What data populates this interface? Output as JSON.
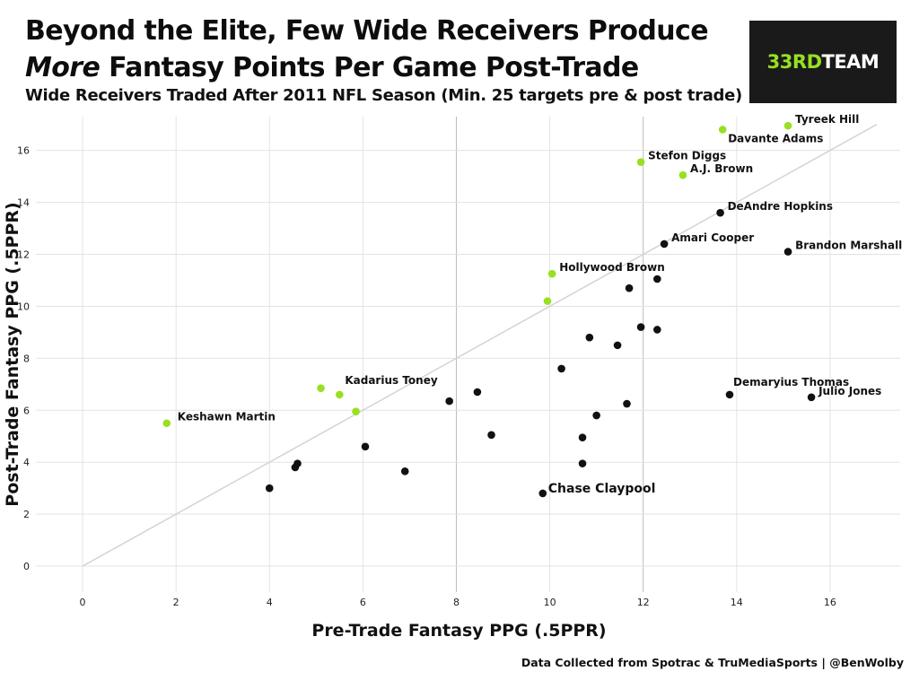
{
  "header": {
    "title_line1": "Beyond the Elite, Few Wide Receivers Produce",
    "title_line2_emph": "More",
    "title_line2_rest": " Fantasy Points Per Game Post-Trade",
    "subtitle": "Wide Receivers Traded After 2011 NFL Season (Min. 25 targets pre & post trade)"
  },
  "logo": {
    "part1": "33RD",
    "part2": "TEAM"
  },
  "footer": {
    "source": "Data Collected from Spotrac & TruMediaSports | @BenWolby"
  },
  "colors": {
    "highlight": "#97e022",
    "default": "#111111",
    "ref_line": "#d4d4d4",
    "grid": "#e3e3e3"
  },
  "chart_data": {
    "type": "scatter",
    "title": "Beyond the Elite, Few Wide Receivers Produce More Fantasy Points Per Game Post-Trade",
    "subtitle": "Wide Receivers Traded After 2011 NFL Season (Min. 25 targets pre & post trade)",
    "xlabel": "Pre-Trade Fantasy PPG (.5PPR)",
    "ylabel": "Post-Trade Fantasy PPG (.5PPR)",
    "xlim": [
      -1,
      17.5
    ],
    "ylim": [
      -1,
      17.3
    ],
    "xticks": [
      0,
      2,
      4,
      6,
      8,
      10,
      12,
      14,
      16
    ],
    "yticks": [
      0,
      2,
      4,
      6,
      8,
      10,
      12,
      14,
      16
    ],
    "grid": true,
    "reference_line": {
      "from": [
        0,
        0
      ],
      "to": [
        17,
        17
      ]
    },
    "points": [
      {
        "x": 15.1,
        "y": 16.95,
        "label": "Tyreek Hill",
        "highlight": true
      },
      {
        "x": 13.7,
        "y": 16.8,
        "label": "Davante Adams",
        "highlight": true
      },
      {
        "x": 11.95,
        "y": 15.55,
        "label": "Stefon Diggs",
        "highlight": true
      },
      {
        "x": 12.85,
        "y": 15.05,
        "label": "A.J. Brown",
        "highlight": true
      },
      {
        "x": 13.65,
        "y": 13.6,
        "label": "DeAndre Hopkins",
        "highlight": false
      },
      {
        "x": 12.45,
        "y": 12.4,
        "label": "Amari Cooper",
        "highlight": false
      },
      {
        "x": 15.1,
        "y": 12.1,
        "label": "Brandon Marshall",
        "highlight": false
      },
      {
        "x": 10.05,
        "y": 11.25,
        "label": "Hollywood Brown",
        "highlight": true
      },
      {
        "x": 9.95,
        "y": 10.2,
        "label": "",
        "highlight": true
      },
      {
        "x": 11.7,
        "y": 10.7,
        "label": "",
        "highlight": false
      },
      {
        "x": 12.3,
        "y": 11.05,
        "label": "",
        "highlight": false
      },
      {
        "x": 11.95,
        "y": 9.2,
        "label": "",
        "highlight": false
      },
      {
        "x": 12.3,
        "y": 9.1,
        "label": "",
        "highlight": false
      },
      {
        "x": 10.85,
        "y": 8.8,
        "label": "",
        "highlight": false
      },
      {
        "x": 11.45,
        "y": 8.5,
        "label": "",
        "highlight": false
      },
      {
        "x": 10.25,
        "y": 7.6,
        "label": "",
        "highlight": false
      },
      {
        "x": 13.85,
        "y": 6.6,
        "label": "Demaryius Thomas",
        "highlight": false
      },
      {
        "x": 15.6,
        "y": 6.5,
        "label": "Julio Jones",
        "highlight": false
      },
      {
        "x": 11.65,
        "y": 6.25,
        "label": "",
        "highlight": false
      },
      {
        "x": 11.0,
        "y": 5.8,
        "label": "",
        "highlight": false
      },
      {
        "x": 10.7,
        "y": 4.95,
        "label": "",
        "highlight": false
      },
      {
        "x": 10.7,
        "y": 3.95,
        "label": "",
        "highlight": false
      },
      {
        "x": 9.85,
        "y": 2.8,
        "label": "Chase Claypool",
        "highlight": false,
        "big_label": true
      },
      {
        "x": 8.45,
        "y": 6.7,
        "label": "",
        "highlight": false
      },
      {
        "x": 7.85,
        "y": 6.35,
        "label": "",
        "highlight": false
      },
      {
        "x": 8.75,
        "y": 5.05,
        "label": "",
        "highlight": false
      },
      {
        "x": 6.9,
        "y": 3.65,
        "label": "",
        "highlight": false
      },
      {
        "x": 6.05,
        "y": 4.6,
        "label": "",
        "highlight": false
      },
      {
        "x": 5.1,
        "y": 6.85,
        "label": "",
        "highlight": true
      },
      {
        "x": 5.5,
        "y": 6.6,
        "label": "Kadarius Toney",
        "highlight": true
      },
      {
        "x": 5.85,
        "y": 5.95,
        "label": "",
        "highlight": true
      },
      {
        "x": 4.6,
        "y": 3.95,
        "label": "",
        "highlight": false
      },
      {
        "x": 4.55,
        "y": 3.8,
        "label": "",
        "highlight": false
      },
      {
        "x": 4.0,
        "y": 3.0,
        "label": "",
        "highlight": false
      },
      {
        "x": 1.8,
        "y": 5.5,
        "label": "Keshawn Martin",
        "highlight": true
      }
    ]
  }
}
